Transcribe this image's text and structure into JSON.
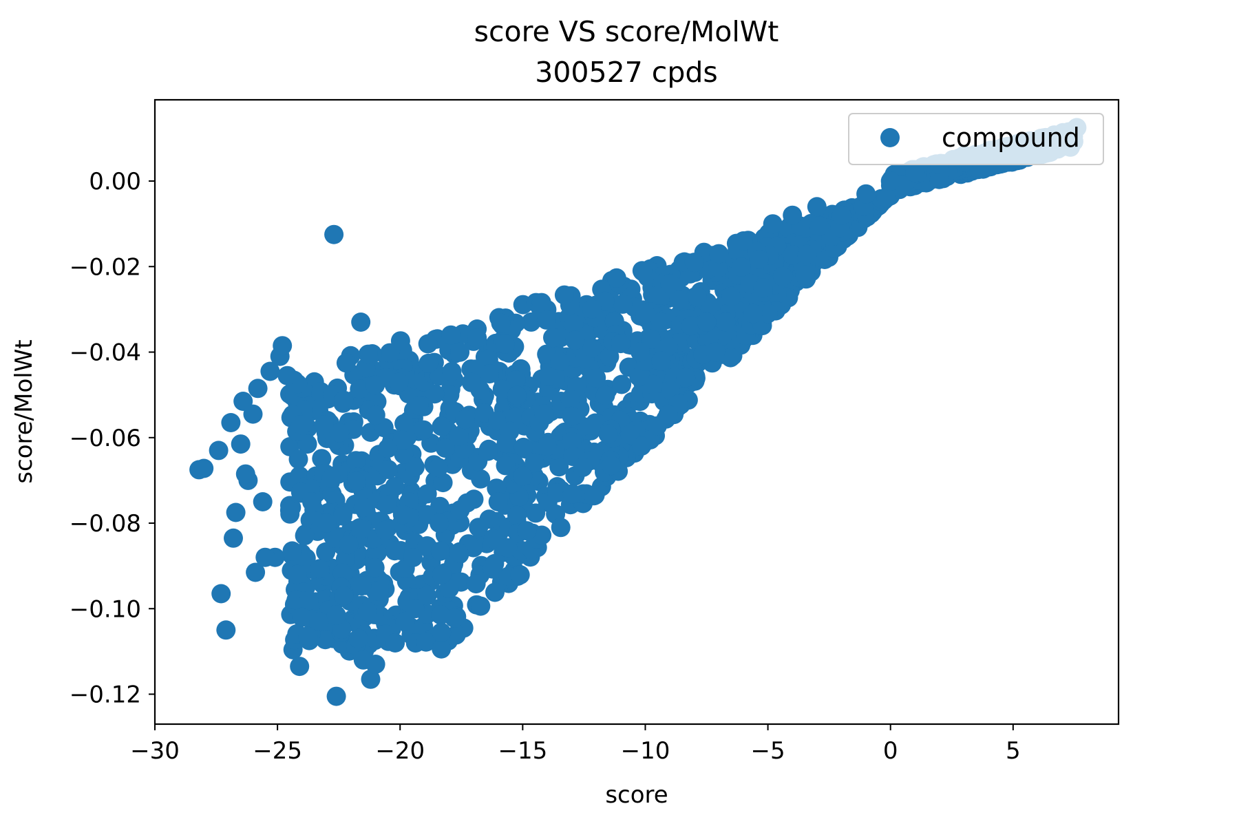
{
  "chart_data": {
    "type": "scatter",
    "title": "score VS score/MolWt",
    "subtitle": "300527 cpds",
    "xlabel": "score",
    "ylabel": "score/MolWt",
    "xlim": [
      -30,
      9.3
    ],
    "ylim": [
      -0.127,
      0.019
    ],
    "x_ticks": [
      -30,
      -25,
      -20,
      -15,
      -10,
      -5,
      0,
      5
    ],
    "x_tick_labels": [
      "−30",
      "−25",
      "−20",
      "−15",
      "−10",
      "−5",
      "0",
      "5"
    ],
    "y_ticks": [
      0.0,
      -0.02,
      -0.04,
      -0.06,
      -0.08,
      -0.1,
      -0.12
    ],
    "y_tick_labels": [
      "0.00",
      "−0.02",
      "−0.04",
      "−0.06",
      "−0.08",
      "−0.10",
      "−0.12"
    ],
    "grid": false,
    "legend_position": "top-right",
    "series": [
      {
        "name": "compound",
        "color": "#1f77b4",
        "marker": "circle",
        "x": [
          -28.2,
          -28.0,
          -27.4,
          -27.3,
          -27.1,
          -26.9,
          -26.7,
          -26.8,
          -26.5,
          -26.4,
          -26.2,
          -26.0,
          -25.9,
          -25.8,
          -25.6,
          -25.3,
          -25.1,
          -24.9,
          -24.8,
          -24.6,
          -24.4,
          -24.2,
          -24.1,
          -24.0,
          -23.6,
          -23.3,
          -23.0,
          -22.8,
          -22.6,
          -22.4,
          -22.1,
          -21.7,
          -21.5,
          -21.2,
          -21.0,
          -20.6,
          -20.2,
          -19.8,
          -19.4,
          -18.9,
          -18.3,
          -17.6,
          -16.8,
          -16.0,
          -15.0,
          -14.0,
          -13.0,
          -12.0,
          -11.0,
          -10.0,
          -9.0,
          -8.0,
          -7.5,
          -7.0,
          -6.5,
          -6.0,
          -5.6,
          -5.2,
          -4.8,
          -4.0,
          -3.0,
          -2.0,
          -1.0,
          0.0,
          1.0,
          2.0,
          3.0,
          4.0,
          5.0,
          6.0,
          7.0,
          7.6,
          -24.5,
          -22.7,
          -21.3,
          -21.6,
          -23.1,
          -25.5,
          -26.3,
          -20.5,
          -19.9,
          -22.3,
          -22.6
        ],
        "y": [
          -0.0675,
          -0.0672,
          -0.063,
          -0.0965,
          -0.105,
          -0.0565,
          -0.0775,
          -0.0835,
          -0.0615,
          -0.0515,
          -0.07,
          -0.0545,
          -0.0915,
          -0.0485,
          -0.075,
          -0.0445,
          -0.088,
          -0.041,
          -0.0385,
          -0.0455,
          -0.0865,
          -0.092,
          -0.1135,
          -0.102,
          -0.075,
          -0.103,
          -0.08,
          -0.0695,
          -0.1205,
          -0.095,
          -0.085,
          -0.107,
          -0.112,
          -0.1165,
          -0.113,
          -0.106,
          -0.108,
          -0.103,
          -0.1,
          -0.097,
          -0.092,
          -0.087,
          -0.081,
          -0.075,
          -0.069,
          -0.062,
          -0.055,
          -0.046,
          -0.038,
          -0.031,
          -0.024,
          -0.019,
          -0.033,
          -0.017,
          -0.027,
          -0.014,
          -0.031,
          -0.025,
          -0.01,
          -0.008,
          -0.006,
          -0.008,
          -0.003,
          0.0,
          0.002,
          0.004,
          0.006,
          0.007,
          0.008,
          0.0095,
          0.011,
          0.0125,
          -0.077,
          -0.0125,
          -0.0405,
          -0.033,
          -0.057,
          -0.088,
          -0.0685,
          -0.0625,
          -0.078,
          -0.097,
          -0.1015
        ]
      }
    ]
  }
}
